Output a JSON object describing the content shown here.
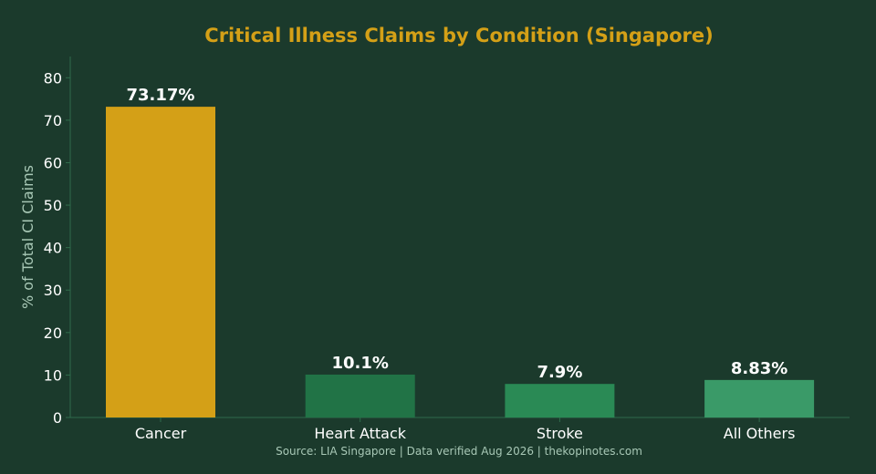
{
  "colors": {
    "background": "#1b3a2c",
    "title": "#d4a017",
    "axis_label": "#a8c8b6",
    "axis_line": "#2f6b4b",
    "source": "#a8c8b6",
    "tick": "#ffffff"
  },
  "chart_data": {
    "type": "bar",
    "title": "Critical Illness Claims by Condition (Singapore)",
    "xlabel": "",
    "ylabel": "% of Total CI Claims",
    "ylim": [
      0,
      85
    ],
    "yticks": [
      0,
      10,
      20,
      30,
      40,
      50,
      60,
      70,
      80
    ],
    "categories": [
      "Cancer",
      "Heart Attack",
      "Stroke",
      "All Others"
    ],
    "values": [
      73.17,
      10.1,
      7.9,
      8.83
    ],
    "value_labels": [
      "73.17%",
      "10.1%",
      "7.9%",
      "8.83%"
    ],
    "bar_colors": [
      "#d4a017",
      "#217346",
      "#2a8a55",
      "#3a9a68"
    ],
    "grid": false,
    "legend": "none"
  },
  "source": "Source: LIA Singapore | Data verified Aug 2026 | thekopinotes.com"
}
